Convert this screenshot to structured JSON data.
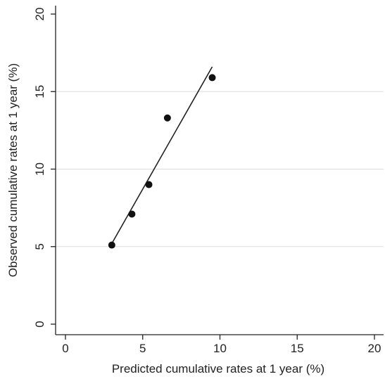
{
  "chart_data": {
    "type": "scatter",
    "title": "",
    "xlabel": "Predicted cumulative rates at 1 year (%)",
    "ylabel": "Observed cumulative rates at 1 year (%)",
    "xlim": [
      0,
      20
    ],
    "ylim": [
      0,
      20
    ],
    "x_ticks": [
      0,
      5,
      10,
      15,
      20
    ],
    "y_ticks": [
      0,
      5,
      10,
      15,
      20
    ],
    "grid": "horizontal",
    "legend": "none",
    "points": [
      {
        "x": 3.0,
        "y": 5.1
      },
      {
        "x": 4.3,
        "y": 7.1
      },
      {
        "x": 5.4,
        "y": 9.0
      },
      {
        "x": 6.6,
        "y": 13.3
      },
      {
        "x": 9.5,
        "y": 15.9
      }
    ],
    "fit_line": {
      "x": [
        3.0,
        9.5
      ],
      "y": [
        5.2,
        16.6
      ]
    },
    "colors": {
      "marker": "#111111",
      "line": "#222222",
      "grid": "#dddddd",
      "axis": "#222222"
    }
  }
}
